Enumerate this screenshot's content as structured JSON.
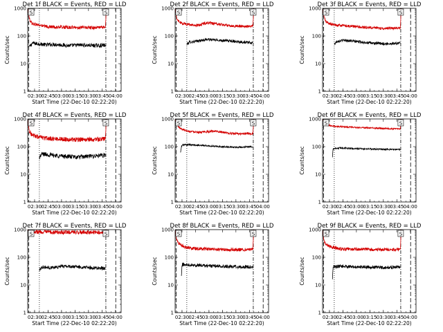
{
  "figure": {
    "colors": {
      "events": "#000000",
      "lld": "#d40000",
      "background": "#ffffff"
    },
    "start_time_label": "Start Time (22-Dec-10 02:22:20)",
    "ylabel": "Counts/sec",
    "y_tick_labels": [
      "1000",
      "100",
      "10",
      "1"
    ],
    "x_tick_labels": [
      "02:30",
      "02:45",
      "03:00",
      "03:15",
      "03:30",
      "03:45",
      "04:00"
    ],
    "saa_marker": "S"
  },
  "chart_data": [
    {
      "type": "line",
      "title": "Det 1f BLACK = Events, RED = LLD",
      "log_y": true,
      "ylim": [
        1,
        1000
      ],
      "x_unit": "minutes after 02:22:20",
      "xlim": [
        0,
        104
      ],
      "vlines_dashed": [
        0,
        98
      ],
      "vlines_dotted": [
        13
      ],
      "vlines_dashdot": [
        87
      ],
      "saa_markers": [
        0,
        87
      ],
      "series": [
        {
          "name": "BLACK = Events",
          "noise": 0.07,
          "t": [
            2,
            5,
            12,
            20,
            30,
            45,
            60,
            75,
            86.5
          ],
          "values": [
            40,
            55,
            52,
            48,
            50,
            45,
            47,
            45,
            46
          ]
        },
        {
          "name": "RED = LLD",
          "noise": 0.06,
          "t": [
            0,
            2,
            5,
            12,
            20,
            30,
            45,
            60,
            75,
            86.5,
            87,
            87.6
          ],
          "values": [
            1000,
            400,
            280,
            250,
            220,
            210,
            205,
            200,
            200,
            210,
            400,
            1000
          ]
        }
      ]
    },
    {
      "type": "line",
      "title": "Det 2f BLACK = Events, RED = LLD",
      "log_y": true,
      "ylim": [
        1,
        1000
      ],
      "x_unit": "minutes after 02:22:20",
      "xlim": [
        0,
        104
      ],
      "vlines_dashed": [
        0,
        98
      ],
      "vlines_dotted": [
        13
      ],
      "vlines_dashdot": [
        87
      ],
      "saa_markers": [
        0,
        87
      ],
      "series": [
        {
          "name": "BLACK = Events",
          "noise": 0.05,
          "t": [
            13,
            16,
            25,
            35,
            50,
            65,
            80,
            86.5
          ],
          "values": [
            50,
            60,
            65,
            75,
            70,
            65,
            58,
            56
          ]
        },
        {
          "name": "RED = LLD",
          "noise": 0.05,
          "t": [
            0,
            2,
            6,
            15,
            25,
            35,
            50,
            65,
            80,
            86.5,
            87,
            87.6
          ],
          "values": [
            1000,
            400,
            300,
            260,
            240,
            300,
            260,
            230,
            220,
            230,
            400,
            1000
          ]
        }
      ]
    },
    {
      "type": "line",
      "title": "Det 3f BLACK = Events, RED = LLD",
      "log_y": true,
      "ylim": [
        1,
        1000
      ],
      "x_unit": "minutes after 02:22:20",
      "xlim": [
        0,
        104
      ],
      "vlines_dashed": [
        0,
        98
      ],
      "vlines_dotted": [
        13
      ],
      "vlines_dashdot": [
        87
      ],
      "saa_markers": [
        0,
        87
      ],
      "series": [
        {
          "name": "BLACK = Events",
          "noise": 0.05,
          "t": [
            13,
            16,
            25,
            40,
            55,
            70,
            86.5
          ],
          "values": [
            50,
            65,
            70,
            62,
            55,
            52,
            55
          ]
        },
        {
          "name": "RED = LLD",
          "noise": 0.05,
          "t": [
            0,
            1.5,
            4,
            10,
            20,
            35,
            50,
            65,
            80,
            86.5,
            87,
            87.6
          ],
          "values": [
            1000,
            500,
            320,
            260,
            240,
            220,
            200,
            190,
            190,
            195,
            400,
            1000
          ]
        }
      ]
    },
    {
      "type": "line",
      "title": "Det 4f BLACK = Events, RED = LLD",
      "log_y": true,
      "ylim": [
        1,
        1000
      ],
      "x_unit": "minutes after 02:22:20",
      "xlim": [
        0,
        104
      ],
      "vlines_dashed": [
        0,
        98
      ],
      "vlines_dotted": [
        13
      ],
      "vlines_dashdot": [
        87
      ],
      "saa_markers": [
        0,
        87
      ],
      "series": [
        {
          "name": "BLACK = Events",
          "noise": 0.08,
          "t": [
            13,
            16,
            25,
            40,
            55,
            70,
            86.5
          ],
          "values": [
            40,
            55,
            50,
            45,
            42,
            45,
            48
          ]
        },
        {
          "name": "RED = LLD",
          "noise": 0.08,
          "t": [
            0,
            1.5,
            4,
            10,
            20,
            35,
            50,
            65,
            80,
            86.5,
            87,
            87.6
          ],
          "values": [
            1000,
            400,
            280,
            230,
            200,
            190,
            180,
            180,
            185,
            190,
            400,
            1000
          ]
        }
      ]
    },
    {
      "type": "line",
      "title": "Det 5f BLACK = Events, RED = LLD",
      "log_y": true,
      "ylim": [
        1,
        1000
      ],
      "x_unit": "minutes after 02:22:20",
      "xlim": [
        0,
        104
      ],
      "vlines_dashed": [
        0,
        98
      ],
      "vlines_dotted": [
        13
      ],
      "vlines_dashdot": [
        87
      ],
      "saa_markers": [
        0,
        87
      ],
      "series": [
        {
          "name": "BLACK = Events",
          "noise": 0.03,
          "t": [
            6,
            7,
            8,
            15,
            30,
            50,
            70,
            86.5
          ],
          "values": [
            60,
            100,
            115,
            118,
            110,
            100,
            95,
            100
          ]
        },
        {
          "name": "RED = LLD",
          "noise": 0.04,
          "t": [
            0,
            2,
            6,
            15,
            30,
            45,
            60,
            75,
            86.5,
            87,
            87.6
          ],
          "values": [
            1000,
            600,
            450,
            360,
            330,
            370,
            300,
            290,
            300,
            500,
            1000
          ]
        }
      ]
    },
    {
      "type": "line",
      "title": "Det 6f BLACK = Events, RED = LLD",
      "log_y": true,
      "ylim": [
        1,
        1000
      ],
      "x_unit": "minutes after 02:22:20",
      "xlim": [
        0,
        104
      ],
      "vlines_dashed": [
        0,
        98
      ],
      "vlines_dotted": [
        13
      ],
      "vlines_dashdot": [
        87
      ],
      "saa_markers": [
        0,
        87
      ],
      "series": [
        {
          "name": "BLACK = Events",
          "noise": 0.03,
          "t": [
            11,
            11.6,
            12,
            20,
            35,
            50,
            70,
            86.5
          ],
          "values": [
            40,
            80,
            85,
            90,
            85,
            82,
            80,
            78
          ]
        },
        {
          "name": "RED = LLD",
          "noise": 0.03,
          "t": [
            0,
            2,
            6,
            15,
            30,
            50,
            70,
            86.5,
            87,
            87.6
          ],
          "values": [
            1000,
            700,
            600,
            540,
            510,
            480,
            450,
            440,
            600,
            1000
          ]
        }
      ]
    },
    {
      "type": "line",
      "title": "Det 7f BLACK = Events, RED = LLD",
      "log_y": true,
      "ylim": [
        1,
        1000
      ],
      "x_unit": "minutes after 02:22:20",
      "xlim": [
        0,
        104
      ],
      "vlines_dashed": [
        0,
        98
      ],
      "vlines_dotted": [
        13
      ],
      "vlines_dashdot": [
        87
      ],
      "saa_markers": [
        0,
        87
      ],
      "series": [
        {
          "name": "BLACK = Events",
          "noise": 0.06,
          "t": [
            13,
            16,
            25,
            40,
            55,
            70,
            86.5
          ],
          "values": [
            35,
            45,
            42,
            48,
            45,
            42,
            40
          ]
        },
        {
          "name": "RED = LLD",
          "noise": 0.07,
          "t": [
            0,
            1,
            4,
            15,
            30,
            50,
            70,
            86.5,
            87,
            87.6
          ],
          "values": [
            1000,
            900,
            850,
            820,
            800,
            800,
            790,
            800,
            900,
            1000
          ]
        }
      ]
    },
    {
      "type": "line",
      "title": "Det 8f BLACK = Events, RED = LLD",
      "log_y": true,
      "ylim": [
        1,
        1000
      ],
      "x_unit": "minutes after 02:22:20",
      "xlim": [
        0,
        104
      ],
      "vlines_dashed": [
        0,
        98
      ],
      "vlines_dotted": [
        13
      ],
      "vlines_dashdot": [
        87
      ],
      "saa_markers": [
        0,
        87
      ],
      "series": [
        {
          "name": "BLACK = Events",
          "noise": 0.06,
          "t": [
            7,
            7.6,
            8,
            15,
            30,
            50,
            70,
            86.5
          ],
          "values": [
            20,
            45,
            55,
            55,
            50,
            48,
            45,
            45
          ]
        },
        {
          "name": "RED = LLD",
          "noise": 0.06,
          "t": [
            0,
            1.5,
            4,
            10,
            20,
            35,
            50,
            65,
            80,
            86.5,
            87,
            87.6
          ],
          "values": [
            1000,
            450,
            320,
            240,
            210,
            200,
            190,
            190,
            190,
            195,
            400,
            1000
          ]
        }
      ]
    },
    {
      "type": "line",
      "title": "Det 9f BLACK = Events, RED = LLD",
      "log_y": true,
      "ylim": [
        1,
        1000
      ],
      "x_unit": "minutes after 02:22:20",
      "xlim": [
        0,
        104
      ],
      "vlines_dashed": [
        0,
        98
      ],
      "vlines_dotted": [
        13
      ],
      "vlines_dashdot": [
        87
      ],
      "saa_markers": [
        0,
        87
      ],
      "series": [
        {
          "name": "BLACK = Events",
          "noise": 0.06,
          "t": [
            11,
            11.6,
            12,
            20,
            35,
            50,
            70,
            86.5
          ],
          "values": [
            15,
            40,
            45,
            48,
            45,
            45,
            42,
            45
          ]
        },
        {
          "name": "RED = LLD",
          "noise": 0.06,
          "t": [
            0,
            1.5,
            4,
            10,
            20,
            35,
            50,
            65,
            80,
            86.5,
            87,
            87.6
          ],
          "values": [
            1000,
            400,
            280,
            230,
            200,
            195,
            195,
            190,
            190,
            195,
            400,
            1000
          ]
        }
      ]
    }
  ]
}
